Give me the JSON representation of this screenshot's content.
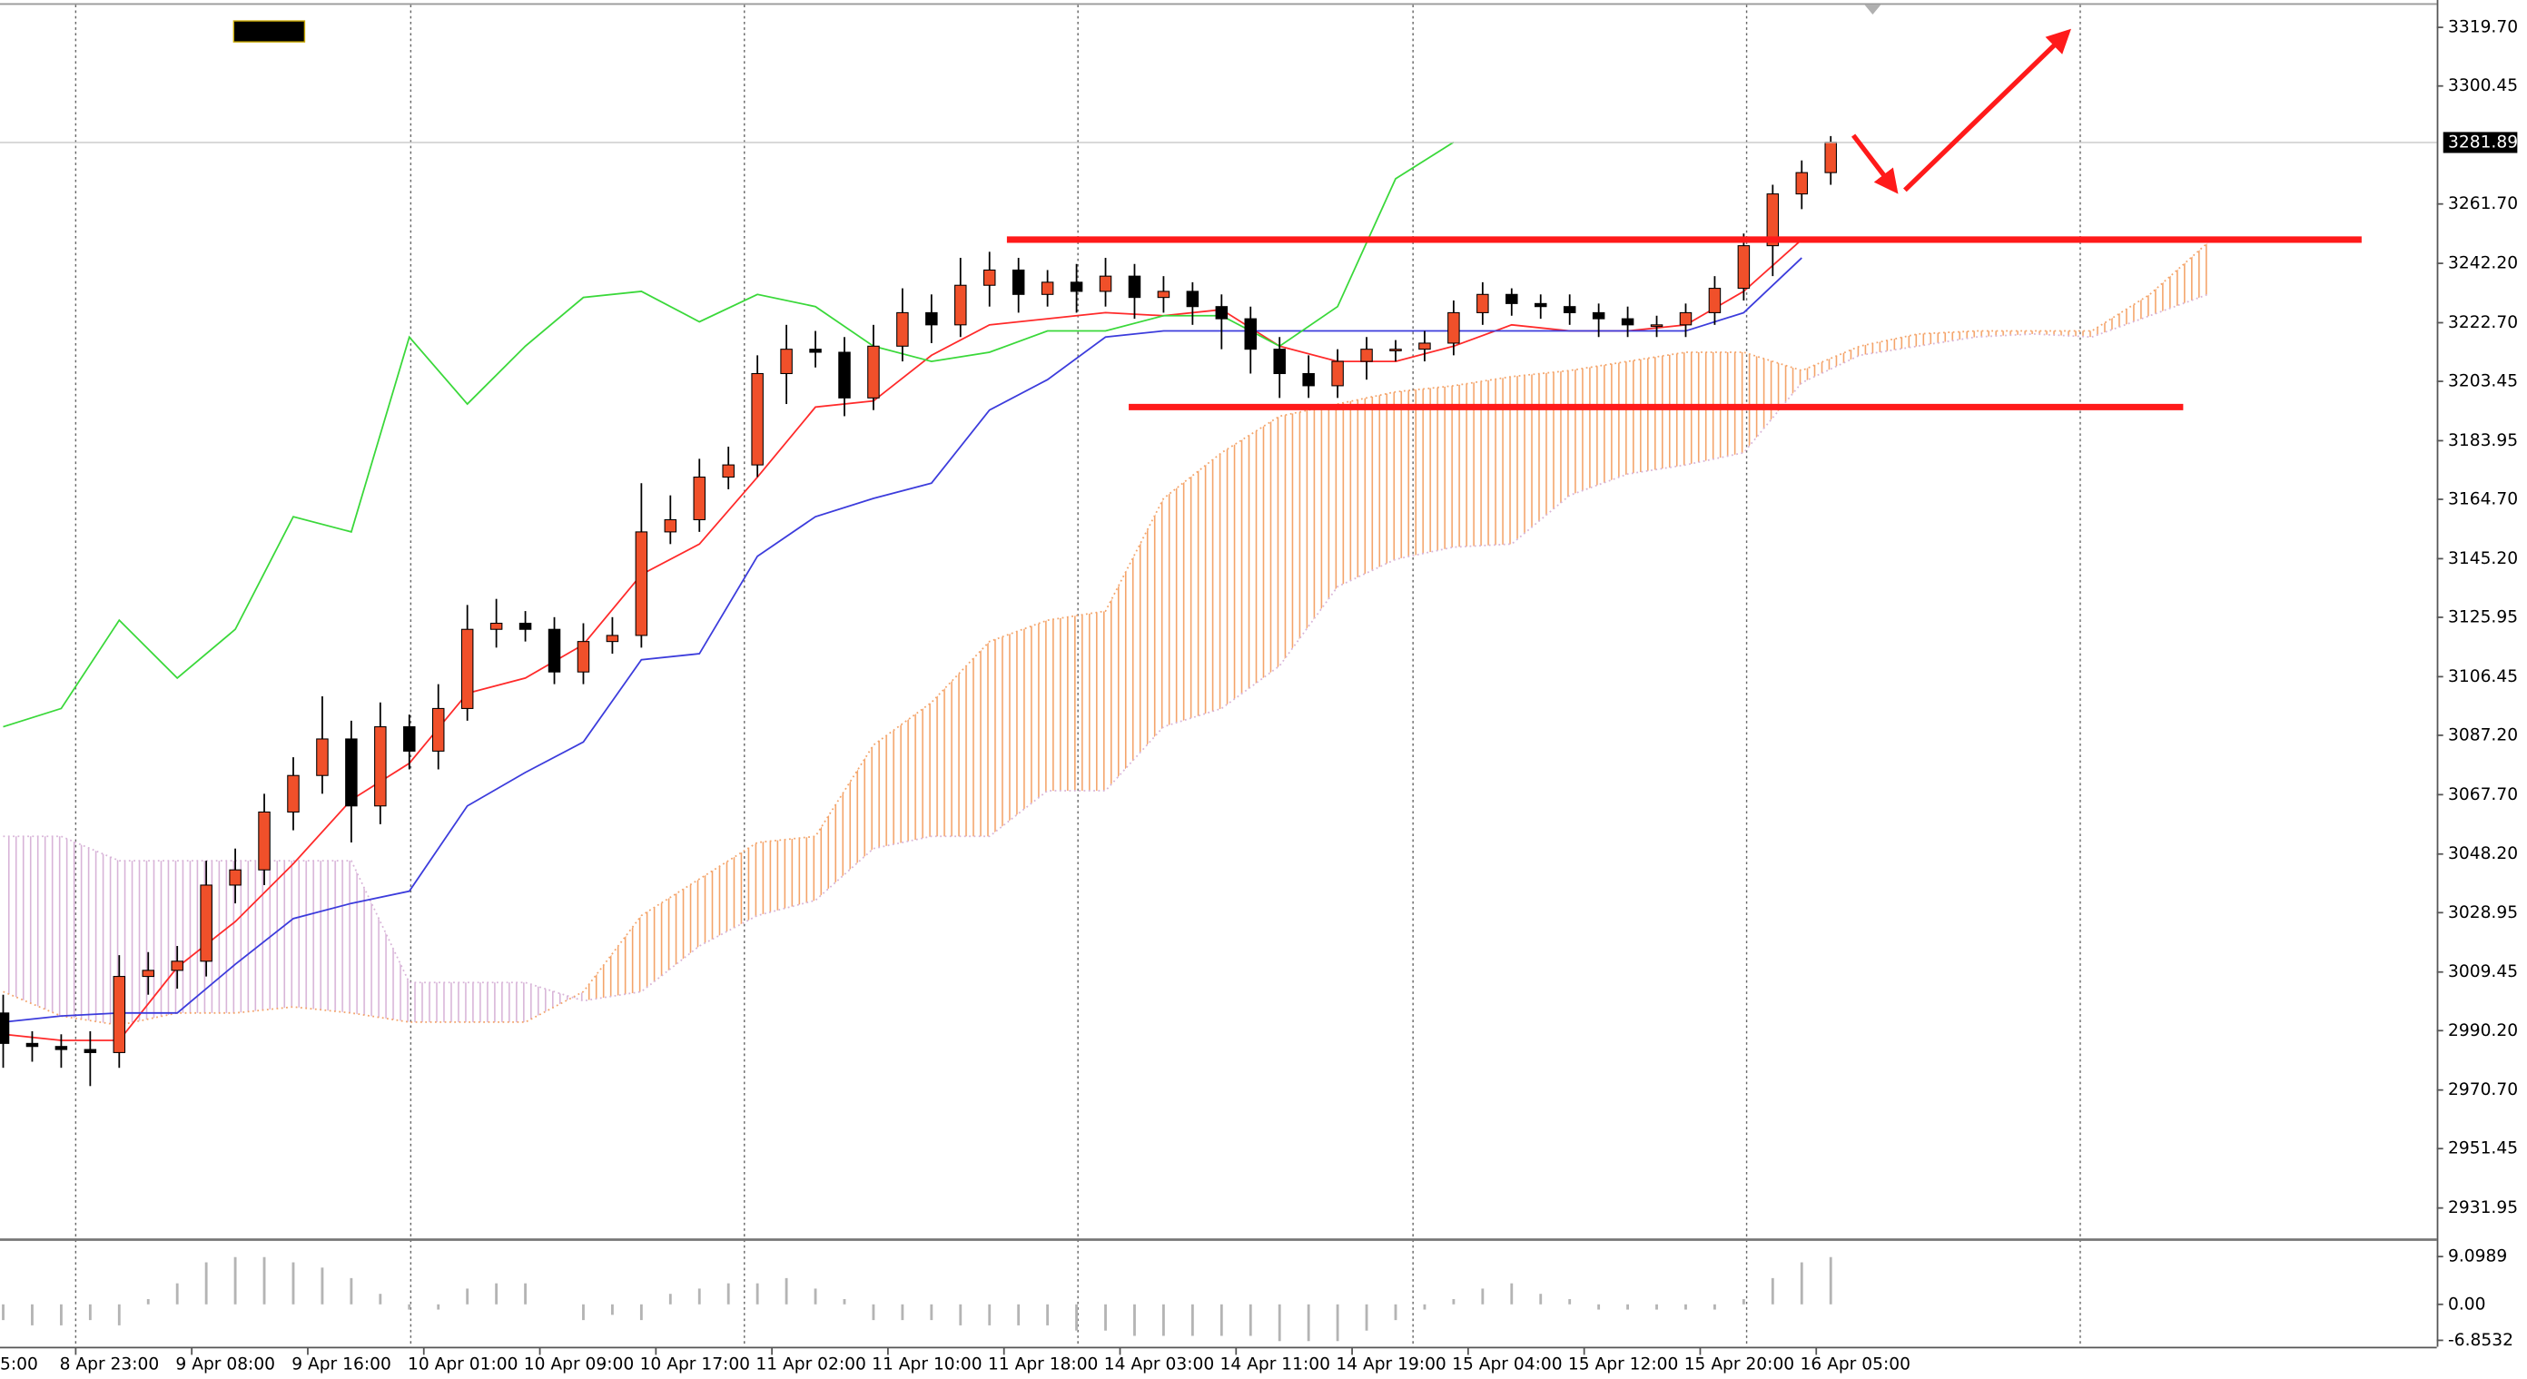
{
  "chart_data": {
    "type": "candlestick",
    "xlim": [
      -5.22,
      162.78
    ],
    "ylim": [
      2921.82,
      3328.69
    ],
    "xticks": [
      {
        "value": -8,
        "label": "5:00"
      },
      {
        "value": 0,
        "label": "8 Apr 23:00"
      },
      {
        "value": 8,
        "label": "9 Apr 08:00"
      },
      {
        "value": 16,
        "label": "9 Apr 16:00"
      },
      {
        "value": 24,
        "label": "10 Apr 01:00"
      },
      {
        "value": 32,
        "label": "10 Apr 09:00"
      },
      {
        "value": 40,
        "label": "10 Apr 17:00"
      },
      {
        "value": 48,
        "label": "11 Apr 02:00"
      },
      {
        "value": 56,
        "label": "11 Apr 10:00"
      },
      {
        "value": 64,
        "label": "11 Apr 18:00"
      },
      {
        "value": 72,
        "label": "14 Apr 03:00"
      },
      {
        "value": 80,
        "label": "14 Apr 11:00"
      },
      {
        "value": 88,
        "label": "14 Apr 19:00"
      },
      {
        "value": 96,
        "label": "15 Apr 04:00"
      },
      {
        "value": 104,
        "label": "15 Apr 12:00"
      },
      {
        "value": 112,
        "label": "15 Apr 20:00"
      },
      {
        "value": 120,
        "label": "16 Apr 05:00"
      }
    ],
    "xgrid": [
      0,
      23.1,
      46.1,
      69.1,
      92.2,
      115.2,
      138.2
    ],
    "yticks": [
      {
        "value": 3319.7,
        "label": "3319.70"
      },
      {
        "value": 3300.45,
        "label": "3300.45"
      },
      {
        "value": 3261.7,
        "label": "3261.70"
      },
      {
        "value": 3242.2,
        "label": "3242.20"
      },
      {
        "value": 3222.7,
        "label": "3222.70"
      },
      {
        "value": 3203.45,
        "label": "3203.45"
      },
      {
        "value": 3183.95,
        "label": "3183.95"
      },
      {
        "value": 3164.7,
        "label": "3164.70"
      },
      {
        "value": 3145.2,
        "label": "3145.20"
      },
      {
        "value": 3125.95,
        "label": "3125.95"
      },
      {
        "value": 3106.45,
        "label": "3106.45"
      },
      {
        "value": 3087.2,
        "label": "3087.20"
      },
      {
        "value": 3067.7,
        "label": "3067.70"
      },
      {
        "value": 3048.2,
        "label": "3048.20"
      },
      {
        "value": 3028.95,
        "label": "3028.95"
      },
      {
        "value": 3009.45,
        "label": "3009.45"
      },
      {
        "value": 2990.2,
        "label": "2990.20"
      },
      {
        "value": 2970.7,
        "label": "2970.70"
      },
      {
        "value": 2951.45,
        "label": "2951.45"
      },
      {
        "value": 2931.95,
        "label": "2931.95"
      }
    ],
    "last_price": 3281.89,
    "candles": {
      "up_color": "#f0502a",
      "down_color": "#000000",
      "x": [
        -5,
        -3,
        -1,
        1,
        3,
        5,
        7,
        9,
        11,
        13,
        15,
        17,
        19,
        21,
        23,
        25,
        27,
        29,
        31,
        33,
        35,
        37,
        39,
        41,
        43,
        45,
        47,
        49,
        51,
        53,
        55,
        57,
        59,
        61,
        63,
        65,
        67,
        69,
        71,
        73,
        75,
        77,
        79,
        81,
        83,
        85,
        87,
        89,
        91,
        93,
        95,
        97,
        99,
        101,
        103,
        105,
        107,
        109,
        111,
        113,
        115,
        117,
        119,
        121
      ],
      "open": [
        2996,
        2986,
        2985,
        2984,
        2983,
        3008,
        3010,
        3013,
        3038,
        3043,
        3062,
        3074,
        3086,
        3064,
        3090,
        3082,
        3096,
        3122,
        3124,
        3122,
        3108,
        3118,
        3120,
        3154,
        3158,
        3172,
        3176,
        3206,
        3214,
        3213,
        3198,
        3215,
        3226,
        3222,
        3235,
        3240,
        3232,
        3236,
        3233,
        3238,
        3231,
        3233,
        3228,
        3224,
        3214,
        3206,
        3202,
        3210,
        3214,
        3214,
        3216,
        3226,
        3232,
        3229,
        3228,
        3226,
        3224,
        3222,
        3222,
        3226,
        3234,
        3248,
        3265,
        3272
      ],
      "high": [
        3002,
        2990,
        2989,
        2990,
        3015,
        3016,
        3018,
        3046,
        3050,
        3068,
        3080,
        3100,
        3092,
        3098,
        3094,
        3104,
        3130,
        3132,
        3128,
        3126,
        3124,
        3126,
        3170,
        3166,
        3178,
        3182,
        3212,
        3222,
        3220,
        3218,
        3222,
        3234,
        3232,
        3244,
        3246,
        3244,
        3240,
        3242,
        3244,
        3242,
        3238,
        3236,
        3232,
        3228,
        3218,
        3212,
        3214,
        3218,
        3217,
        3220,
        3230,
        3236,
        3234,
        3232,
        3232,
        3229,
        3228,
        3225,
        3229,
        3238,
        3252,
        3268,
        3276,
        3284
      ],
      "low": [
        2978,
        2980,
        2978,
        2972,
        2978,
        3002,
        3004,
        3008,
        3032,
        3038,
        3056,
        3068,
        3052,
        3058,
        3076,
        3076,
        3092,
        3116,
        3118,
        3104,
        3104,
        3114,
        3116,
        3150,
        3154,
        3168,
        3172,
        3196,
        3208,
        3192,
        3194,
        3210,
        3216,
        3218,
        3228,
        3226,
        3228,
        3226,
        3228,
        3224,
        3226,
        3222,
        3214,
        3206,
        3198,
        3198,
        3198,
        3204,
        3210,
        3210,
        3212,
        3222,
        3225,
        3224,
        3222,
        3218,
        3218,
        3218,
        3218,
        3222,
        3230,
        3238,
        3260,
        3268
      ],
      "close": [
        2986,
        2985,
        2984,
        2983,
        3008,
        3010,
        3013,
        3038,
        3043,
        3062,
        3074,
        3086,
        3064,
        3090,
        3082,
        3096,
        3122,
        3124,
        3122,
        3108,
        3118,
        3120,
        3154,
        3158,
        3172,
        3176,
        3206,
        3214,
        3213,
        3198,
        3215,
        3226,
        3222,
        3235,
        3240,
        3232,
        3236,
        3233,
        3238,
        3231,
        3233,
        3228,
        3224,
        3214,
        3206,
        3202,
        3210,
        3214,
        3214,
        3216,
        3226,
        3232,
        3229,
        3228,
        3226,
        3224,
        3222,
        3222,
        3226,
        3234,
        3248,
        3265,
        3272,
        3282
      ]
    },
    "lines": [
      {
        "color": "#ff2a2a",
        "x": [
          -5,
          -1,
          3,
          7,
          11,
          15,
          19,
          23,
          27,
          31,
          35,
          39,
          43,
          47,
          51,
          55,
          59,
          63,
          67,
          71,
          75,
          79,
          83,
          87,
          91,
          95,
          99,
          103,
          107,
          111,
          115,
          119
        ],
        "values": [
          2989,
          2987,
          2987,
          3011,
          3026,
          3045,
          3066,
          3078,
          3101,
          3106,
          3117,
          3140,
          3150,
          3172,
          3195,
          3197,
          3212,
          3222,
          3224,
          3226,
          3225,
          3227,
          3215,
          3210,
          3210,
          3215,
          3222,
          3220,
          3220,
          3222,
          3233,
          3250
        ]
      },
      {
        "color": "#3c3cdc",
        "x": [
          -5,
          -1,
          3,
          7,
          11,
          15,
          19,
          23,
          27,
          31,
          35,
          39,
          43,
          47,
          51,
          55,
          59,
          63,
          67,
          71,
          75,
          79,
          83,
          87,
          91,
          95,
          99,
          103,
          107,
          111,
          115,
          119
        ],
        "values": [
          2993,
          2995,
          2996,
          2996,
          3012,
          3027,
          3032,
          3036,
          3064,
          3075,
          3085,
          3112,
          3114,
          3146,
          3159,
          3165,
          3170,
          3194,
          3204,
          3218,
          3220,
          3220,
          3220,
          3220,
          3220,
          3220,
          3220,
          3220,
          3220,
          3220,
          3226,
          3244
        ]
      },
      {
        "color": "#3ad83a",
        "x": [
          -5,
          -1,
          3,
          7,
          11,
          15,
          19,
          23,
          27,
          31,
          35,
          39,
          43,
          47,
          51,
          55,
          59,
          63,
          67,
          71,
          75,
          79,
          83,
          87,
          91,
          95
        ],
        "values": [
          3090,
          3096,
          3125,
          3106,
          3122,
          3159,
          3154,
          3218,
          3196,
          3215,
          3231,
          3233,
          3223,
          3232,
          3228,
          3215,
          3210,
          3213,
          3220,
          3220,
          3225,
          3225,
          3215,
          3228,
          3270,
          3282
        ]
      }
    ],
    "cloud": {
      "up_color": "#f4a46a",
      "down_color": "#d8b4d8",
      "x": [
        -5,
        -1,
        3,
        7,
        11,
        15,
        19,
        23,
        27,
        31,
        35,
        39,
        43,
        47,
        51,
        55,
        59,
        63,
        67,
        71,
        75,
        79,
        83,
        87,
        91,
        95,
        99,
        103,
        107,
        111,
        115,
        119,
        123,
        127,
        131,
        135,
        139,
        143,
        147
      ],
      "span_a": [
        3003,
        2995,
        2992,
        2996,
        2996,
        2998,
        2996,
        2993,
        2993,
        2993,
        3003,
        3028,
        3040,
        3052,
        3054,
        3084,
        3098,
        3118,
        3125,
        3128,
        3165,
        3180,
        3192,
        3196,
        3200,
        3202,
        3205,
        3207,
        3210,
        3213,
        3213,
        3207,
        3215,
        3219,
        3220,
        3220,
        3220,
        3232,
        3249
      ],
      "span_b": [
        3054,
        3054,
        3046,
        3046,
        3046,
        3046,
        3046,
        3006,
        3006,
        3006,
        3000,
        3003,
        3018,
        3028,
        3033,
        3050,
        3054,
        3054,
        3069,
        3069,
        3090,
        3096,
        3110,
        3136,
        3145,
        3149,
        3150,
        3166,
        3173,
        3176,
        3180,
        3203,
        3212,
        3215,
        3218,
        3219,
        3218,
        3225,
        3232
      ]
    },
    "levels": [
      {
        "value": 3250,
        "x": [
          64.2,
          157.6
        ],
        "color": "#ff1a1a"
      },
      {
        "value": 3195,
        "x": [
          72.6,
          145.3
        ],
        "color": "#ff1a1a"
      }
    ],
    "indicator": {
      "type": "histogram",
      "color": "#b4b4b4",
      "ylim": [
        -6.8532,
        9.0989
      ],
      "yticks": [
        9.0989,
        {
          "value": 0,
          "label": "0.00"
        },
        -6.8532
      ],
      "x": [
        -5,
        -3,
        -1,
        1,
        3,
        5,
        7,
        9,
        11,
        13,
        15,
        17,
        19,
        21,
        23,
        25,
        27,
        29,
        31,
        33,
        35,
        37,
        39,
        41,
        43,
        45,
        47,
        49,
        51,
        53,
        55,
        57,
        59,
        61,
        63,
        65,
        67,
        69,
        71,
        73,
        75,
        77,
        79,
        81,
        83,
        85,
        87,
        89,
        91,
        93,
        95,
        97,
        99,
        101,
        103,
        105,
        107,
        109,
        111,
        113,
        115,
        117,
        119,
        121
      ],
      "values": [
        -3,
        -4,
        -4,
        -3,
        -4,
        1,
        4,
        8,
        9,
        9,
        8,
        7,
        5,
        2,
        -1,
        -1,
        3,
        4,
        4,
        0,
        -3,
        -2,
        -3,
        2,
        3,
        4,
        4,
        5,
        3,
        1,
        -3,
        -3,
        -3,
        -4,
        -4,
        -4,
        -4,
        -5,
        -5,
        -6,
        -6,
        -6,
        -6,
        -6,
        -7,
        -7,
        -7,
        -5,
        -3,
        -1,
        1,
        3,
        4,
        2,
        1,
        -1,
        -1,
        -1,
        -1,
        -1,
        1,
        5,
        8,
        9
      ]
    }
  }
}
